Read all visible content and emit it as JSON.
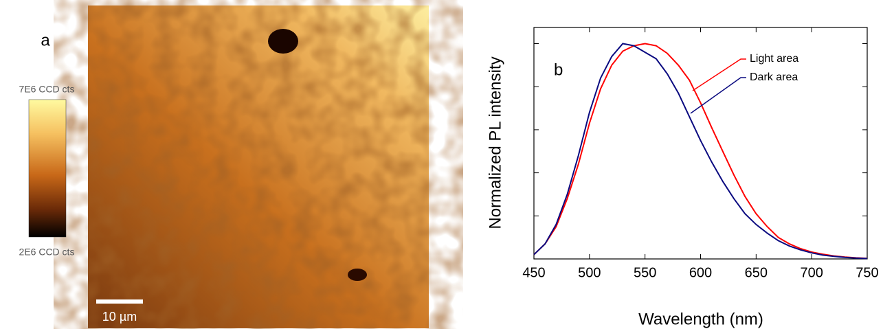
{
  "panel_a": {
    "label": "a",
    "colorbar_max": "7E6 CCD cts",
    "colorbar_min": "2E6 CCD cts",
    "scale_bar": "10 µm"
  },
  "chart_data": {
    "type": "line",
    "panel_label": "b",
    "xlabel": "Wavelength (nm)",
    "ylabel": "Normalized PL intensity",
    "x": [
      450,
      460,
      470,
      480,
      490,
      500,
      510,
      520,
      530,
      540,
      550,
      560,
      570,
      580,
      590,
      600,
      610,
      620,
      630,
      640,
      650,
      660,
      670,
      680,
      690,
      700,
      710,
      720,
      730,
      740,
      750
    ],
    "series": [
      {
        "name": "Light area",
        "color": "#ff0000",
        "values": [
          0.02,
          0.07,
          0.15,
          0.28,
          0.44,
          0.63,
          0.79,
          0.9,
          0.965,
          0.99,
          1.0,
          0.99,
          0.955,
          0.9,
          0.83,
          0.725,
          0.61,
          0.5,
          0.39,
          0.29,
          0.21,
          0.15,
          0.1,
          0.07,
          0.048,
          0.032,
          0.022,
          0.014,
          0.009,
          0.005,
          0.003
        ]
      },
      {
        "name": "Dark area",
        "color": "#0a0a80",
        "values": [
          0.02,
          0.07,
          0.16,
          0.3,
          0.48,
          0.68,
          0.84,
          0.94,
          1.0,
          0.99,
          0.96,
          0.93,
          0.86,
          0.77,
          0.66,
          0.55,
          0.45,
          0.36,
          0.28,
          0.21,
          0.16,
          0.12,
          0.085,
          0.06,
          0.042,
          0.028,
          0.018,
          0.012,
          0.007,
          0.004,
          0.002
        ]
      }
    ],
    "xlim": [
      450,
      750
    ],
    "xticks": [
      450,
      500,
      550,
      600,
      650,
      700,
      750
    ],
    "ylim": [
      0,
      1.075
    ],
    "yticks": [
      0,
      0.2,
      0.4,
      0.6,
      0.8,
      1.0
    ]
  }
}
